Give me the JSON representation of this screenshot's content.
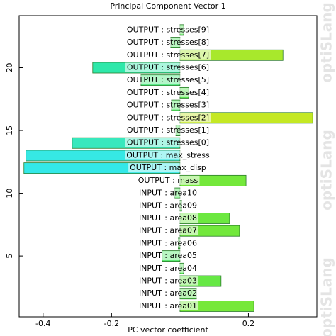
{
  "chart_data": {
    "type": "barh",
    "title": "Principal Component Vector 1",
    "xlabel": "PC vector coefficient",
    "watermark": "optiSLang",
    "categories": [
      "INPUT : area01",
      "INPUT : area02",
      "INPUT : area03",
      "INPUT : area04",
      "INPUT : area05",
      "INPUT : area06",
      "INPUT : area07",
      "INPUT : area08",
      "INPUT : area09",
      "INPUT : area10",
      "OUTPUT : mass",
      "OUTPUT : max_disp",
      "OUTPUT : max_stress",
      "OUTPUT : stresses[0]",
      "OUTPUT : stresses[1]",
      "OUTPUT : stresses[2]",
      "OUTPUT : stresses[3]",
      "OUTPUT : stresses[4]",
      "OUTPUT : stresses[5]",
      "OUTPUT : stresses[6]",
      "OUTPUT : stresses[7]",
      "OUTPUT : stresses[8]",
      "OUTPUT : stresses[9]"
    ],
    "values": [
      0.216,
      0.048,
      0.12,
      0.01,
      -0.052,
      -0.005,
      0.174,
      0.145,
      0.005,
      -0.015,
      0.193,
      -0.456,
      -0.45,
      -0.315,
      -0.012,
      0.388,
      -0.025,
      0.025,
      -0.114,
      -0.255,
      0.301,
      -0.027,
      0.01
    ],
    "colors": [
      "#77e83a",
      "#5ee84e",
      "#66e845",
      "#55e855",
      "#4ee866",
      "#55e855",
      "#72e83c",
      "#6ce840",
      "#55e855",
      "#52e85c",
      "#74e83b",
      "#33e8e8",
      "#36e8e4",
      "#38e8bd",
      "#52e85c",
      "#c4e824",
      "#4fe862",
      "#5ae850",
      "#46e87c",
      "#2ee8aa",
      "#a8e82c",
      "#4fe862",
      "#55e855"
    ],
    "xlim": [
      -0.47,
      0.4
    ],
    "ylim": [
      0.15,
      24.15
    ],
    "xticks": [
      -0.4,
      -0.2,
      0.2
    ],
    "yticks": [
      5,
      10,
      15,
      20
    ]
  }
}
